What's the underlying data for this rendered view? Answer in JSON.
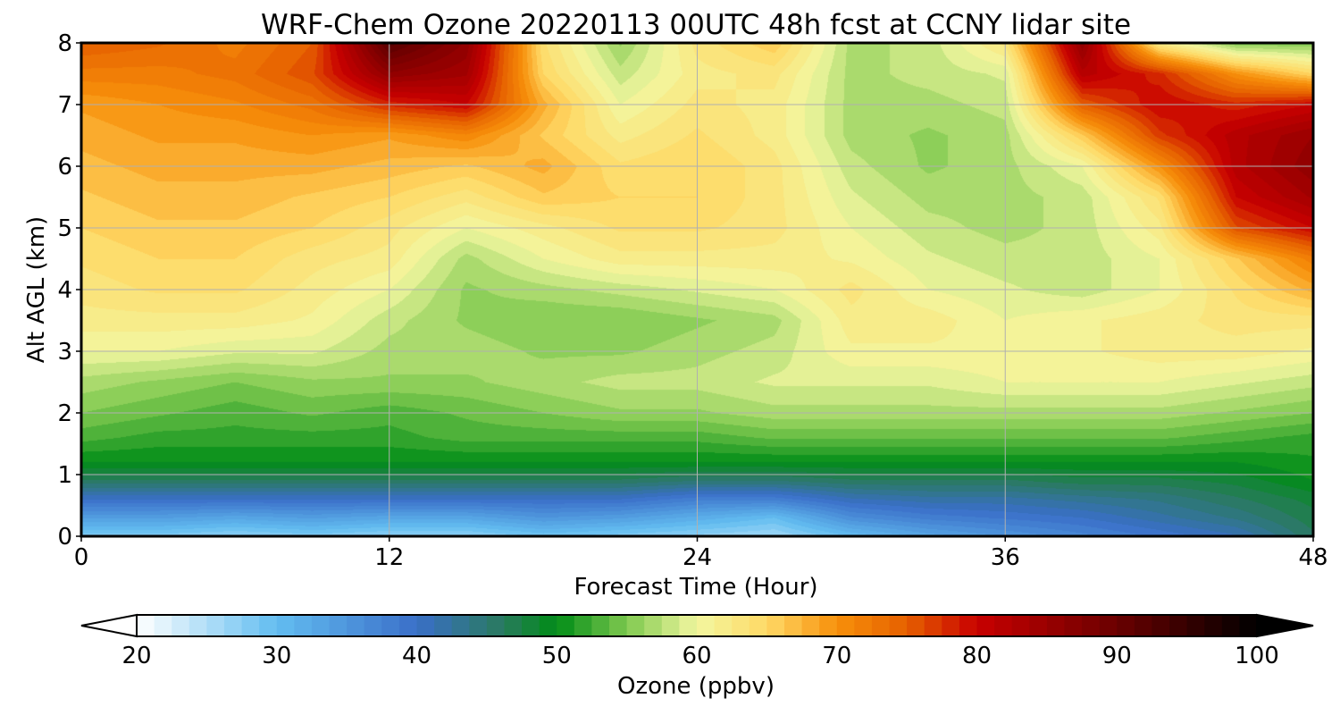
{
  "chart_data": {
    "type": "heatmap",
    "title": "WRF-Chem Ozone  20220113 00UTC 48h fcst at CCNY lidar site",
    "xlabel": "Forecast Time (Hour)",
    "ylabel": "Alt AGL (km)",
    "xlim": [
      0,
      48
    ],
    "ylim": [
      0,
      8
    ],
    "xticks": [
      0,
      12,
      24,
      36,
      48
    ],
    "yticks": [
      0,
      1,
      2,
      3,
      4,
      5,
      6,
      7,
      8
    ],
    "grid": true,
    "x": [
      0,
      3,
      6,
      9,
      12,
      15,
      18,
      21,
      24,
      27,
      30,
      33,
      36,
      39,
      42,
      45,
      48
    ],
    "y": [
      0,
      0.3,
      0.6,
      0.9,
      1.2,
      1.6,
      2.0,
      2.5,
      3.0,
      3.5,
      4.0,
      4.5,
      5.0,
      5.5,
      6.0,
      6.5,
      7.0,
      7.5,
      8.0
    ],
    "z": [
      [
        28,
        28,
        27,
        28,
        27,
        27,
        29,
        28,
        27,
        26,
        30,
        33,
        35,
        37,
        39,
        41,
        46
      ],
      [
        34,
        34,
        33,
        34,
        33,
        33,
        35,
        34,
        32,
        30,
        36,
        38,
        39,
        40,
        42,
        44,
        47
      ],
      [
        40,
        40,
        40,
        40,
        40,
        40,
        40,
        40,
        38,
        38,
        41,
        42,
        42,
        43,
        44,
        46,
        48
      ],
      [
        46,
        46,
        46,
        46,
        46,
        46,
        46,
        46,
        45,
        45,
        46,
        46,
        46,
        47,
        47,
        48,
        50
      ],
      [
        50,
        50,
        50,
        50,
        50,
        50,
        50,
        50,
        50,
        50,
        50,
        50,
        50,
        50,
        50,
        50,
        51
      ],
      [
        53,
        52,
        52,
        52,
        52,
        53,
        53,
        53,
        53,
        54,
        54,
        54,
        54,
        54,
        54,
        53,
        52
      ],
      [
        55,
        54,
        53,
        54,
        53,
        54,
        55,
        56,
        56,
        57,
        57,
        57,
        57,
        57,
        57,
        56,
        55
      ],
      [
        57,
        56,
        55,
        56,
        56,
        56,
        57,
        58,
        58,
        59,
        59,
        59,
        60,
        60,
        60,
        59,
        58
      ],
      [
        60,
        60,
        59,
        59,
        57,
        57,
        56,
        56,
        57,
        58,
        61,
        61,
        61,
        61,
        62,
        62,
        61
      ],
      [
        62,
        62,
        62,
        61,
        58,
        56,
        55,
        55,
        56,
        57,
        62,
        62,
        60,
        61,
        62,
        63,
        63
      ],
      [
        63,
        64,
        64,
        62,
        60,
        56,
        57,
        58,
        59,
        60,
        63,
        60,
        59,
        58,
        60,
        64,
        68
      ],
      [
        64,
        65,
        65,
        63,
        62,
        57,
        60,
        62,
        62,
        62,
        61,
        59,
        58,
        58,
        60,
        66,
        72
      ],
      [
        65,
        66,
        66,
        65,
        63,
        60,
        62,
        64,
        64,
        63,
        60,
        58,
        57,
        58,
        62,
        76,
        80
      ],
      [
        66,
        67,
        67,
        66,
        65,
        63,
        66,
        65,
        65,
        63,
        59,
        57,
        57,
        58,
        64,
        80,
        84
      ],
      [
        67,
        68,
        68,
        68,
        67,
        66,
        68,
        64,
        65,
        63,
        58,
        56,
        57,
        60,
        70,
        82,
        86
      ],
      [
        68,
        69,
        69,
        70,
        69,
        71,
        66,
        62,
        64,
        62,
        57,
        56,
        57,
        66,
        77,
        82,
        85
      ],
      [
        69,
        70,
        71,
        73,
        78,
        80,
        68,
        60,
        63,
        62,
        57,
        57,
        58,
        75,
        80,
        78,
        80
      ],
      [
        72,
        72,
        73,
        76,
        86,
        84,
        65,
        58,
        62,
        63,
        57,
        58,
        59,
        82,
        78,
        70,
        65
      ],
      [
        75,
        74,
        72,
        75,
        92,
        86,
        64,
        56,
        63,
        66,
        57,
        58,
        63,
        86,
        62,
        55,
        55
      ]
    ],
    "colorbar": {
      "label": "Ozone  (ppbv)",
      "min": 20,
      "max": 100,
      "ticks": [
        20,
        30,
        40,
        50,
        60,
        70,
        80,
        90,
        100
      ],
      "extend": "both"
    },
    "colormap_stops": [
      [
        20,
        "#ffffff"
      ],
      [
        30,
        "#62bdf0"
      ],
      [
        40,
        "#3a6fc8"
      ],
      [
        46,
        "#2a7a60"
      ],
      [
        50,
        "#008c17"
      ],
      [
        55,
        "#7fc94f"
      ],
      [
        60,
        "#f2f7a0"
      ],
      [
        65,
        "#ffd966"
      ],
      [
        70,
        "#f7900a"
      ],
      [
        75,
        "#e66000"
      ],
      [
        80,
        "#c80000"
      ],
      [
        90,
        "#6a0000"
      ],
      [
        100,
        "#000000"
      ]
    ]
  }
}
